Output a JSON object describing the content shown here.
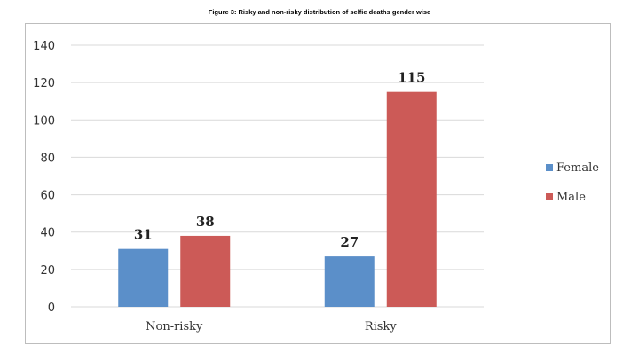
{
  "caption": "Figure 3: Risky and non-risky distribution of selfie deaths gender wise",
  "chart_data": {
    "type": "bar",
    "categories": [
      "Non-risky",
      "Risky"
    ],
    "series": [
      {
        "name": "Female",
        "values": [
          31,
          27
        ],
        "color": "#5b8fc9"
      },
      {
        "name": "Male",
        "values": [
          38,
          115
        ],
        "color": "#cc5a57"
      }
    ],
    "yticks": [
      0,
      20,
      40,
      60,
      80,
      100,
      120,
      140
    ],
    "ylim": [
      0,
      140
    ],
    "grid": true,
    "legend_position": "right",
    "data_labels": true
  }
}
